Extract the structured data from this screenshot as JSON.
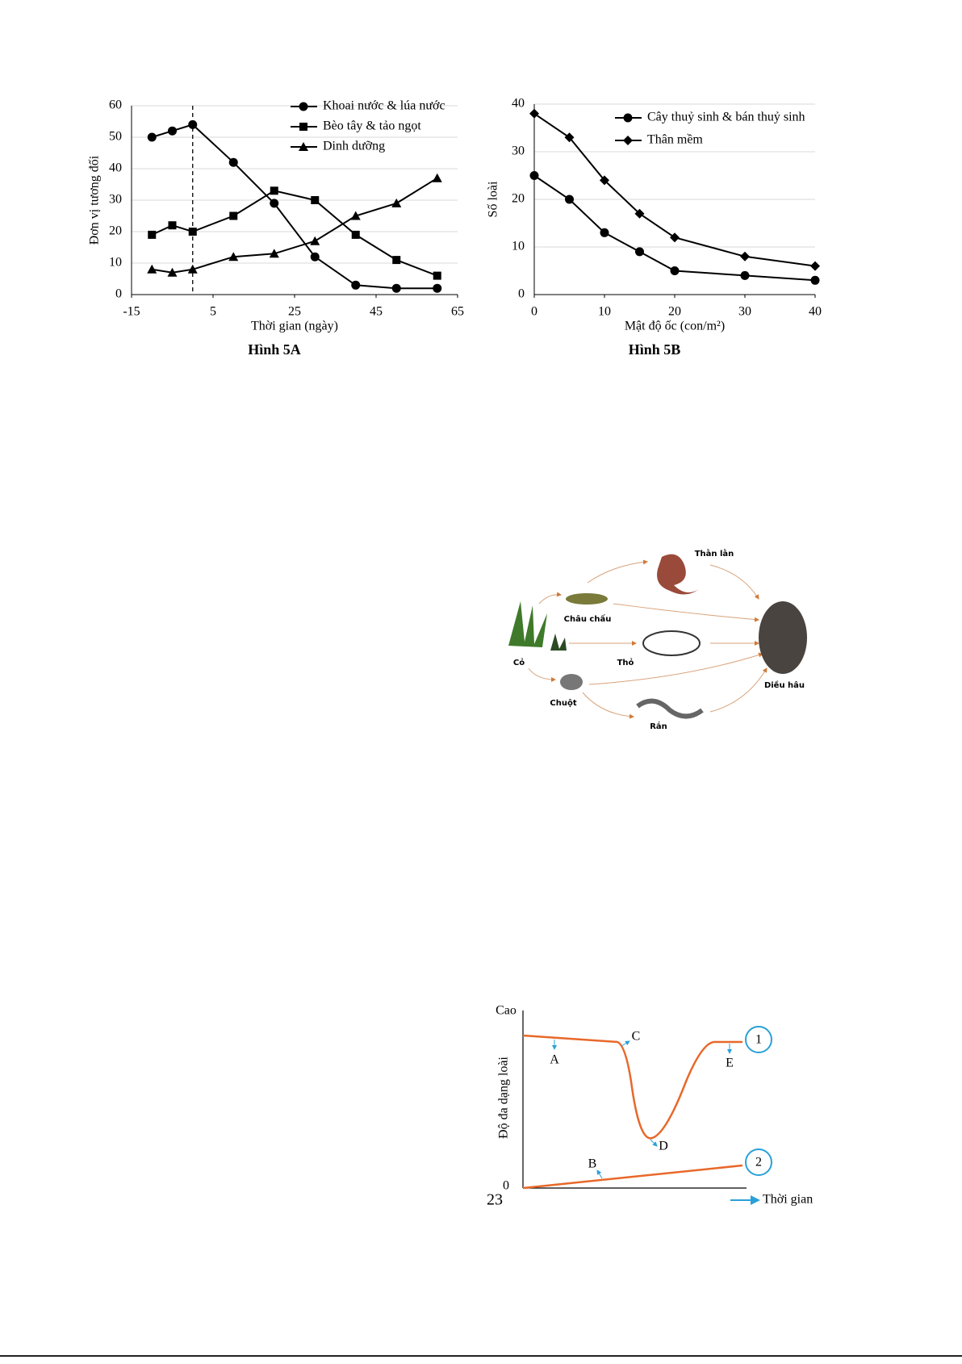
{
  "chart_data": [
    {
      "type": "line",
      "caption": "Hình 5A",
      "xlabel": "Thời gian (ngày)",
      "ylabel": "Đơn vị tương đối",
      "x": [
        -10,
        -5,
        0,
        10,
        20,
        30,
        40,
        50,
        60
      ],
      "series": [
        {
          "name": "Khoai nước & lúa nước",
          "color": "#000000",
          "marker": "circle",
          "values": [
            50,
            52,
            54,
            42,
            29,
            12,
            3,
            2,
            2
          ]
        },
        {
          "name": "Bèo tây & tảo ngọt",
          "color": "#000000",
          "marker": "square",
          "values": [
            19,
            22,
            20,
            25,
            33,
            30,
            19,
            11,
            6
          ]
        },
        {
          "name": "Dinh dưỡng",
          "color": "#000000",
          "marker": "triangle",
          "values": [
            8,
            7,
            8,
            12,
            13,
            17,
            25,
            29,
            37
          ]
        }
      ],
      "xlim": [
        -15,
        65
      ],
      "xticks": [
        -15,
        5,
        25,
        45,
        65
      ],
      "ylim": [
        0,
        60
      ],
      "yticks": [
        0,
        10,
        20,
        30,
        40,
        50,
        60
      ],
      "vline": 0,
      "grid": true,
      "legend": "upper right"
    },
    {
      "type": "line",
      "caption": "Hình 5B",
      "xlabel": "Mật độ ốc (con/m²)",
      "ylabel": "Số loài",
      "x": [
        0,
        5,
        10,
        15,
        20,
        30,
        40
      ],
      "series": [
        {
          "name": "Cây thuỷ sinh & bán thuỷ sinh",
          "color": "#000000",
          "marker": "circle",
          "values": [
            25,
            20,
            13,
            9,
            5,
            4,
            3
          ]
        },
        {
          "name": "Thân mềm",
          "color": "#000000",
          "marker": "diamond",
          "values": [
            38,
            33,
            24,
            17,
            12,
            8,
            6
          ]
        }
      ],
      "xlim": [
        0,
        40
      ],
      "xticks": [
        0,
        10,
        20,
        30,
        40
      ],
      "ylim": [
        0,
        40
      ],
      "yticks": [
        0,
        10,
        20,
        30,
        40
      ],
      "grid": true,
      "legend": "upper right"
    }
  ],
  "food_web": {
    "nodes": [
      "Cỏ",
      "Châu chấu",
      "Thằn lằn",
      "Thỏ",
      "Chuột",
      "Rắn",
      "Diều hâu"
    ]
  },
  "diversity_diagram": {
    "y_top": "Cao",
    "origin": "0",
    "y_label": "Độ đa dạng loài",
    "x_label": "Thời gian",
    "points": [
      "A",
      "B",
      "C",
      "D",
      "E"
    ],
    "curves": [
      "1",
      "2"
    ]
  },
  "page_number": "23"
}
